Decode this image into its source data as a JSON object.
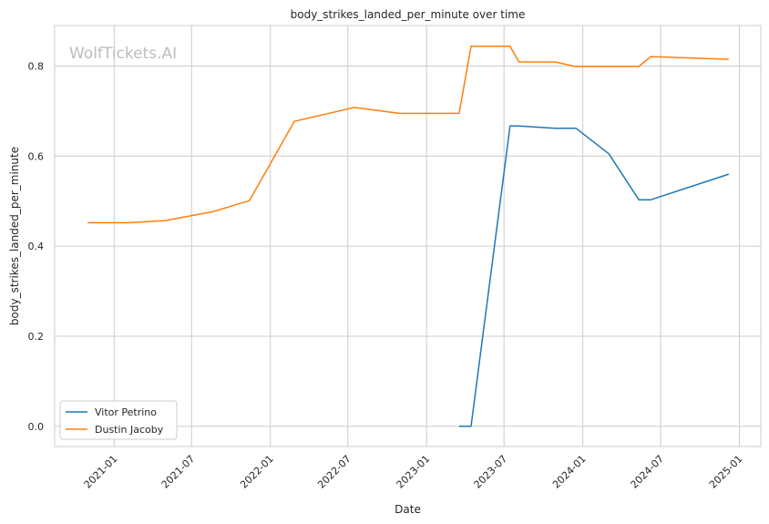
{
  "chart_data": {
    "type": "line",
    "title": "body_strikes_landed_per_minute over time",
    "xlabel": "Date",
    "ylabel": "body_strikes_landed_per_minute",
    "watermark": "WolfTickets.AI",
    "x_ticks": [
      "2021-01",
      "2021-07",
      "2022-01",
      "2022-07",
      "2023-01",
      "2023-07",
      "2024-01",
      "2024-07",
      "2025-01"
    ],
    "y_ticks": [
      "0.0",
      "0.2",
      "0.4",
      "0.6",
      "0.8"
    ],
    "xlim": [
      "2020-08-15",
      "2025-02-20"
    ],
    "ylim": [
      -0.045,
      0.89
    ],
    "grid": true,
    "legend_position": "lower-left",
    "series": [
      {
        "name": "Vitor Petrino",
        "color": "#1f77b4",
        "points": [
          {
            "x": "2023-03-18",
            "y": 0.0
          },
          {
            "x": "2023-04-15",
            "y": 0.0
          },
          {
            "x": "2023-07-15",
            "y": 0.667
          },
          {
            "x": "2023-08-05",
            "y": 0.667
          },
          {
            "x": "2023-10-28",
            "y": 0.662
          },
          {
            "x": "2023-12-16",
            "y": 0.662
          },
          {
            "x": "2024-03-02",
            "y": 0.605
          },
          {
            "x": "2024-05-11",
            "y": 0.503
          },
          {
            "x": "2024-06-08",
            "y": 0.503
          },
          {
            "x": "2024-12-07",
            "y": 0.56
          }
        ]
      },
      {
        "name": "Dustin Jacoby",
        "color": "#ff7f0e",
        "points": [
          {
            "x": "2020-10-31",
            "y": 0.452
          },
          {
            "x": "2021-02-06",
            "y": 0.452
          },
          {
            "x": "2021-05-01",
            "y": 0.457
          },
          {
            "x": "2021-08-21",
            "y": 0.477
          },
          {
            "x": "2021-11-13",
            "y": 0.501
          },
          {
            "x": "2022-02-26",
            "y": 0.677
          },
          {
            "x": "2022-07-16",
            "y": 0.708
          },
          {
            "x": "2022-10-29",
            "y": 0.695
          },
          {
            "x": "2023-03-18",
            "y": 0.695
          },
          {
            "x": "2023-04-15",
            "y": 0.844
          },
          {
            "x": "2023-07-15",
            "y": 0.844
          },
          {
            "x": "2023-08-05",
            "y": 0.809
          },
          {
            "x": "2023-10-28",
            "y": 0.809
          },
          {
            "x": "2023-12-16",
            "y": 0.799
          },
          {
            "x": "2024-05-11",
            "y": 0.799
          },
          {
            "x": "2024-06-08",
            "y": 0.821
          },
          {
            "x": "2024-12-07",
            "y": 0.815
          }
        ]
      }
    ]
  }
}
